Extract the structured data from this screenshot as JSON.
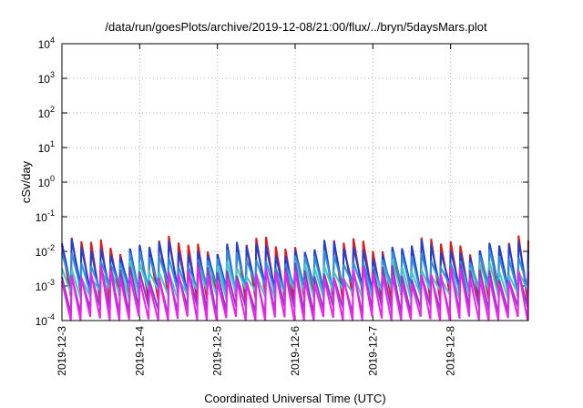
{
  "chart_data": {
    "type": "line",
    "title": "/data/run/goesPlots/archive/2019-12-08/21:00/flux/../bryn/5daysMars.plot",
    "xlabel": "Coordinated Universal Time (UTC)",
    "ylabel": "cSv/day",
    "x_range_days": [
      "2019-12-03",
      "2019-12-09"
    ],
    "x_ticks": [
      "2019-12-3",
      "2019-12-4",
      "2019-12-5",
      "2019-12-6",
      "2019-12-7",
      "2019-12-8"
    ],
    "y_scale": "log",
    "ylim": [
      0.0001,
      10000
    ],
    "y_ticks": [
      {
        "base": "10",
        "exp": "-4",
        "value": 0.0001
      },
      {
        "base": "10",
        "exp": "-3",
        "value": 0.001
      },
      {
        "base": "10",
        "exp": "-2",
        "value": 0.01
      },
      {
        "base": "10",
        "exp": "-1",
        "value": 0.1
      },
      {
        "base": "10",
        "exp": "0",
        "value": 1
      },
      {
        "base": "10",
        "exp": "1",
        "value": 10
      },
      {
        "base": "10",
        "exp": "2",
        "value": 100
      },
      {
        "base": "10",
        "exp": "3",
        "value": 1000
      },
      {
        "base": "10",
        "exp": "4",
        "value": 10000
      }
    ],
    "grid": true,
    "cycles_per_day": 8,
    "series": [
      {
        "color": "#e31a1c",
        "peak": 0.015,
        "trough": 0.0005
      },
      {
        "color": "#1f3fd6",
        "peak": 0.012,
        "trough": 0.0008
      },
      {
        "color": "#2f8fdf",
        "peak": 0.006,
        "trough": 0.0009
      },
      {
        "color": "#40c8c8",
        "peak": 0.003,
        "trough": 0.0006
      },
      {
        "color": "#7f3fbf",
        "peak": 0.0025,
        "trough": 0.0002
      },
      {
        "color": "#ee22ee",
        "peak": 0.002,
        "trough": 0.0001
      }
    ]
  }
}
